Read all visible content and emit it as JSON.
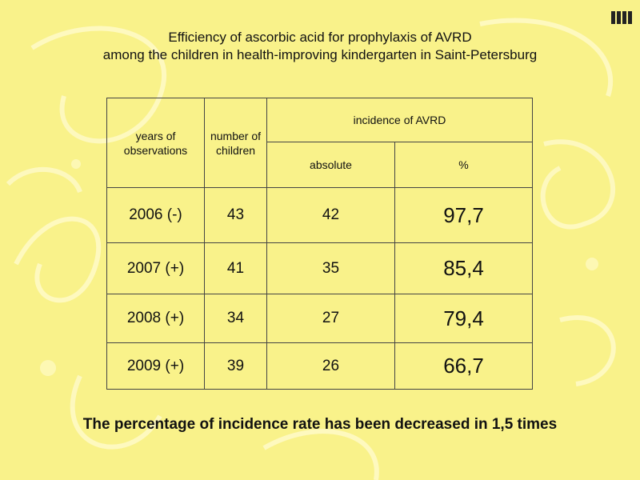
{
  "title": {
    "line1": "Efficiency of ascorbic acid for prophylaxis of AVRD",
    "line2": "among the children in health-improving kindergarten in Saint-Petersburg"
  },
  "table": {
    "headers": {
      "years": "years of observations",
      "number": "number of children",
      "incidence": "incidence of AVRD",
      "absolute": "absolute",
      "percent": "%"
    },
    "rows": [
      {
        "year": "2006  (-)",
        "number": "43",
        "absolute": "42",
        "percent": "97,7"
      },
      {
        "year": "2007 (+)",
        "number": "41",
        "absolute": "35",
        "percent": "85,4"
      },
      {
        "year": "2008 (+)",
        "number": "34",
        "absolute": "27",
        "percent": "79,4"
      },
      {
        "year": "2009 (+)",
        "number": "39",
        "absolute": "26",
        "percent": "66,7"
      }
    ]
  },
  "footer": "The percentage of incidence rate has been decreased in 1,5 times",
  "colors": {
    "background": "#f9f28a",
    "text": "#111111",
    "border": "#444444"
  },
  "icons": {
    "logo": "slide-logo-icon"
  }
}
